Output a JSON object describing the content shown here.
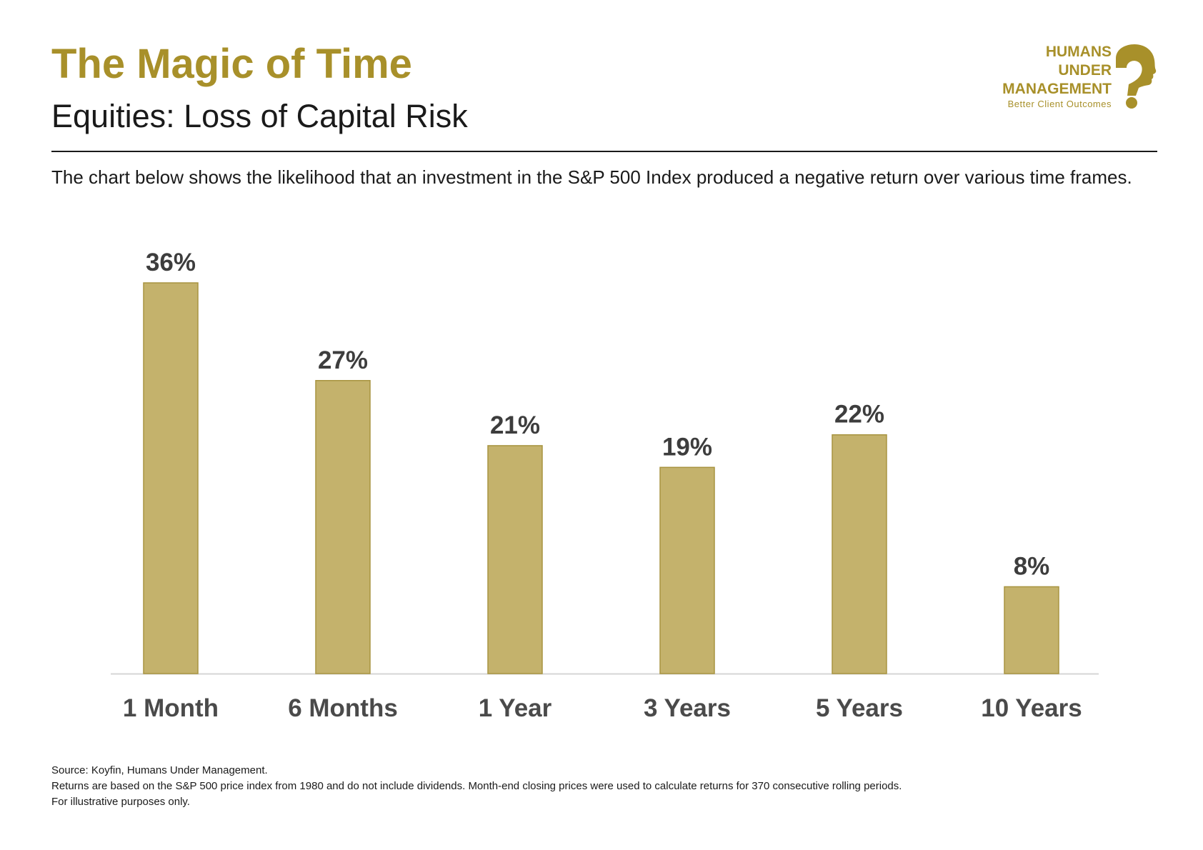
{
  "header": {
    "title": "The Magic of Time",
    "subtitle": "Equities: Loss of Capital Risk"
  },
  "logo": {
    "line1": "HUMANS",
    "line2": "UNDER",
    "line3": "MANAGEMENT",
    "tagline": "Better Client Outcomes",
    "mark_icon": "head-question-mark-icon"
  },
  "description": "The chart below shows the likelihood that an investment in the S&P 500 Index produced a negative return over various time frames.",
  "colors": {
    "accent": "#a8902a",
    "bar_fill": "#c4b26c",
    "bar_stroke": "#a89440",
    "label": "#3d3d3d",
    "axis": "#d6d6d6"
  },
  "chart_data": {
    "type": "bar",
    "categories": [
      "1 Month",
      "6 Months",
      "1 Year",
      "3 Years",
      "5 Years",
      "10 Years"
    ],
    "values": [
      36,
      27,
      21,
      19,
      22,
      8
    ],
    "data_labels": [
      "36%",
      "27%",
      "21%",
      "19%",
      "22%",
      "8%"
    ],
    "unit": "%",
    "ylim": [
      0,
      36
    ],
    "grid": false,
    "legend": "none"
  },
  "footnotes": {
    "source": "Source: Koyfin, Humans Under Management.",
    "method": "Returns are based on the S&P 500 price index from 1980 and do not include dividends. Month-end closing prices were used to calculate returns for 370 consecutive rolling periods.",
    "disclaimer": "For illustrative purposes only."
  }
}
